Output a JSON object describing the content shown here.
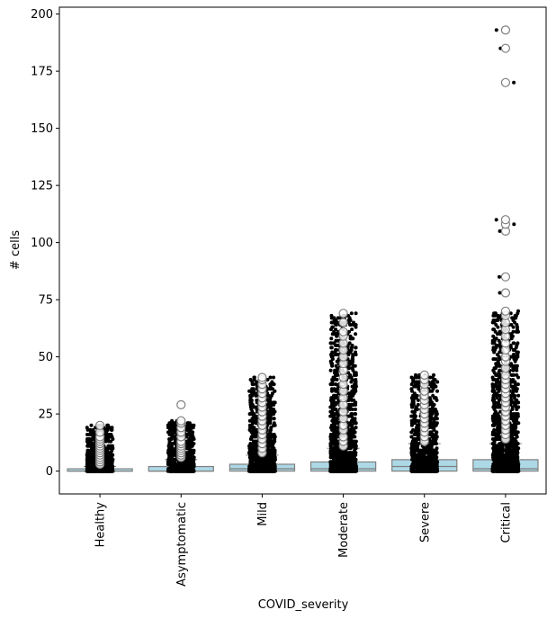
{
  "chart_data": {
    "type": "box",
    "title": "",
    "xlabel": "COVID_severity",
    "ylabel": "# cells",
    "ylim": [
      -10,
      203
    ],
    "yticks": [
      0,
      25,
      50,
      75,
      100,
      125,
      150,
      175,
      200
    ],
    "grid": false,
    "legend": "none",
    "categories": [
      "Healthy",
      "Asymptomatic",
      "Mild",
      "Moderate",
      "Severe",
      "Critical"
    ],
    "box_color": "#add8e6",
    "box_edge_color": "#808080",
    "point_color": "#000000",
    "boxes": [
      {
        "category": "Healthy",
        "q1": 0,
        "median": 0,
        "q3": 1,
        "whisker_low": 0,
        "whisker_high": 2,
        "outliers": [
          3,
          4,
          5,
          6,
          7,
          8,
          9,
          10,
          11,
          12,
          13,
          14,
          15,
          17,
          20
        ],
        "points_max": 20
      },
      {
        "category": "Asymptomatic",
        "q1": 0,
        "median": 0,
        "q3": 2,
        "whisker_low": 0,
        "whisker_high": 5,
        "outliers": [
          6,
          7,
          8,
          9,
          10,
          11,
          12,
          13,
          15,
          17,
          19,
          21,
          22,
          29
        ],
        "points_max": 22
      },
      {
        "category": "Mild",
        "q1": 0,
        "median": 1,
        "q3": 3,
        "whisker_low": 0,
        "whisker_high": 7,
        "outliers": [
          8,
          10,
          12,
          14,
          16,
          18,
          20,
          22,
          24,
          26,
          28,
          30,
          32,
          34,
          36,
          38,
          40,
          41
        ],
        "points_max": 41
      },
      {
        "category": "Moderate",
        "q1": 0,
        "median": 1,
        "q3": 4,
        "whisker_low": 0,
        "whisker_high": 10,
        "outliers": [
          11,
          13,
          15,
          18,
          20,
          23,
          26,
          29,
          32,
          35,
          38,
          41,
          44,
          47,
          50,
          53,
          56,
          59,
          61,
          65,
          69
        ],
        "points_max": 69
      },
      {
        "category": "Severe",
        "q1": 0,
        "median": 2,
        "q3": 5,
        "whisker_low": 0,
        "whisker_high": 12,
        "outliers": [
          13,
          15,
          17,
          19,
          21,
          23,
          25,
          27,
          29,
          31,
          33,
          35,
          38,
          40,
          42
        ],
        "points_max": 42
      },
      {
        "category": "Critical",
        "q1": 0,
        "median": 1,
        "q3": 5,
        "whisker_low": 0,
        "whisker_high": 12,
        "outliers": [
          14,
          16,
          18,
          20,
          22,
          24,
          26,
          28,
          30,
          32,
          34,
          36,
          38,
          40,
          42,
          45,
          48,
          50,
          53,
          56,
          59,
          62,
          65,
          68,
          70,
          78,
          85,
          105,
          108,
          110,
          170,
          185,
          193
        ],
        "points_max": 70,
        "sparse_points": [
          78,
          85,
          105,
          108,
          110,
          170,
          185,
          193
        ]
      }
    ]
  }
}
